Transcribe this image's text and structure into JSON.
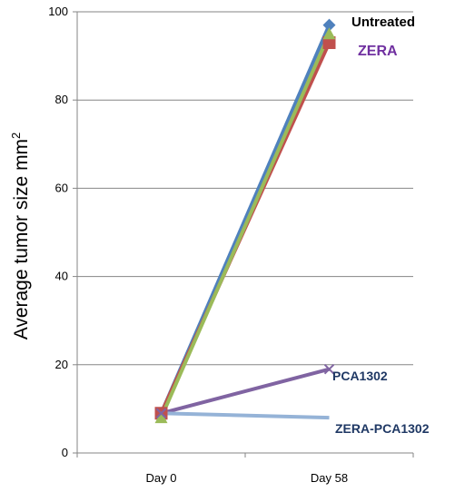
{
  "chart_data": {
    "type": "line",
    "categories": [
      "Day 0",
      "Day 58"
    ],
    "ylabel": "Average tumor size mm",
    "ylabel_superscript": "2",
    "ylim": [
      0,
      100
    ],
    "yticks": [
      0,
      20,
      40,
      60,
      80,
      100
    ],
    "grid": true,
    "legend": "none",
    "series": [
      {
        "name": "Untreated",
        "values": [
          9,
          97
        ],
        "color": "#4F81BD",
        "marker": "diamond"
      },
      {
        "name": "ZERA",
        "values": [
          9,
          93
        ],
        "color": "#C0504D",
        "marker": "square"
      },
      {
        "name": "",
        "values": [
          8,
          95
        ],
        "color": "#9BBB59",
        "marker": "triangle"
      },
      {
        "name": "PCA1302",
        "values": [
          9,
          19
        ],
        "color": "#8064A2",
        "marker": "x"
      },
      {
        "name": "ZERA-PCA1302",
        "values": [
          9,
          8
        ],
        "color": "#95B3D7",
        "marker": "none"
      }
    ],
    "series_labels": {
      "untreated": "Untreated",
      "zera": "ZERA",
      "pca1302": "PCA1302",
      "zera_pca1302": "ZERA-PCA1302"
    },
    "label_colors": {
      "untreated": "#000000",
      "zera": "#7030A0",
      "pca1302": "#1F3864",
      "zera_pca1302": "#1F3864"
    }
  }
}
